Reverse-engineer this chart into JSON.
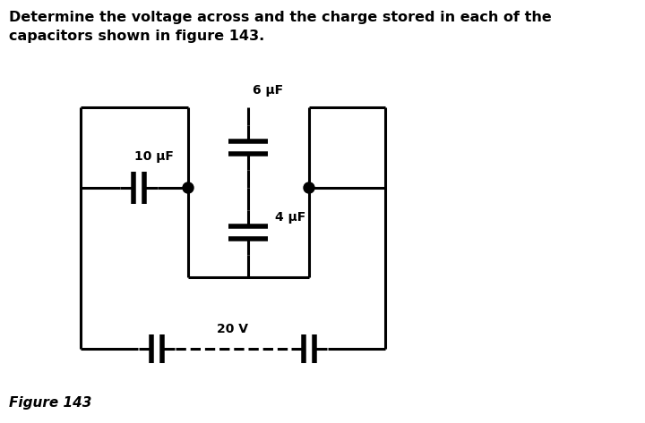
{
  "title_line1": "Determine the voltage across and the charge stored in each of the",
  "title_line2": "capacitors shown in figure 143.",
  "figure_label": "Figure 143",
  "label_10uf": "10 μF",
  "label_6uf": "6 μF",
  "label_4uf": "4 μF",
  "label_20v": "20 V",
  "bg_color": "#ffffff",
  "line_color": "#000000",
  "lw": 2.2
}
